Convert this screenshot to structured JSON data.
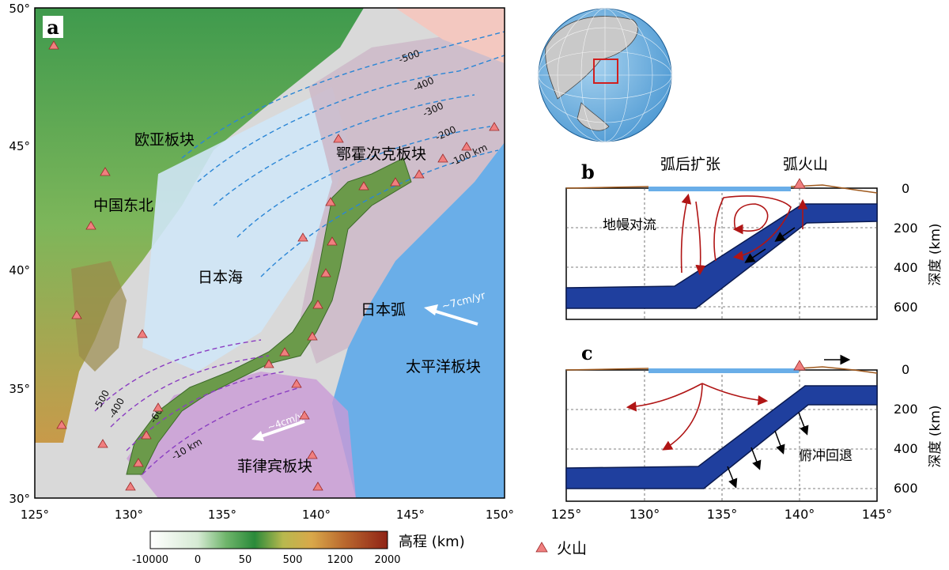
{
  "panel_a": {
    "label": "a",
    "lat_ticks": [
      "50°",
      "45°",
      "40°",
      "35°",
      "30°"
    ],
    "lon_ticks": [
      "125°",
      "130°",
      "135°",
      "140°",
      "145°",
      "150°"
    ],
    "plates": {
      "eurasian": "欧亚板块",
      "okhotsk": "鄂霍次克板块",
      "pacific": "太平洋板块",
      "philippine": "菲律宾板块"
    },
    "regions": {
      "northeast_china": "中国东北",
      "sea_of_japan": "日本海",
      "japan_arc": "日本弧"
    },
    "pacific_velocity": "~7cm/yr",
    "philippine_velocity": "~4cm/yr",
    "pacific_contours": [
      "-500",
      "-400",
      "-300",
      "-200",
      "-100 km"
    ],
    "philippine_contours": [
      "-500",
      "-400",
      "-60",
      "-10 km"
    ],
    "colorbar": {
      "title": "高程 (km)",
      "ticks": [
        "-10000",
        "0",
        "50",
        "500",
        "1200",
        "2000"
      ],
      "colors": [
        "#ffffff",
        "#d6ead4",
        "#6fb56b",
        "#2a8a3a",
        "#b8b94e",
        "#d9a84a",
        "#b9682e",
        "#8f2316"
      ]
    },
    "legend_volcano": "火山"
  },
  "panel_b": {
    "label": "b",
    "backarc": "弧后扩张",
    "arc_volcano": "弧火山",
    "mantle_convection": "地幔对流",
    "depth_ticks": [
      "0",
      "200",
      "400",
      "600"
    ],
    "depth_label": "深度 (km)"
  },
  "panel_c": {
    "label": "c",
    "rollback": "俯冲回退",
    "depth_ticks": [
      "0",
      "200",
      "400",
      "600"
    ],
    "depth_label": "深度 (km)"
  },
  "cross_section_lon_ticks": [
    "125°",
    "130°",
    "135°",
    "140°",
    "145°"
  ],
  "globe": {
    "highlight_color": "#d11f1f"
  }
}
